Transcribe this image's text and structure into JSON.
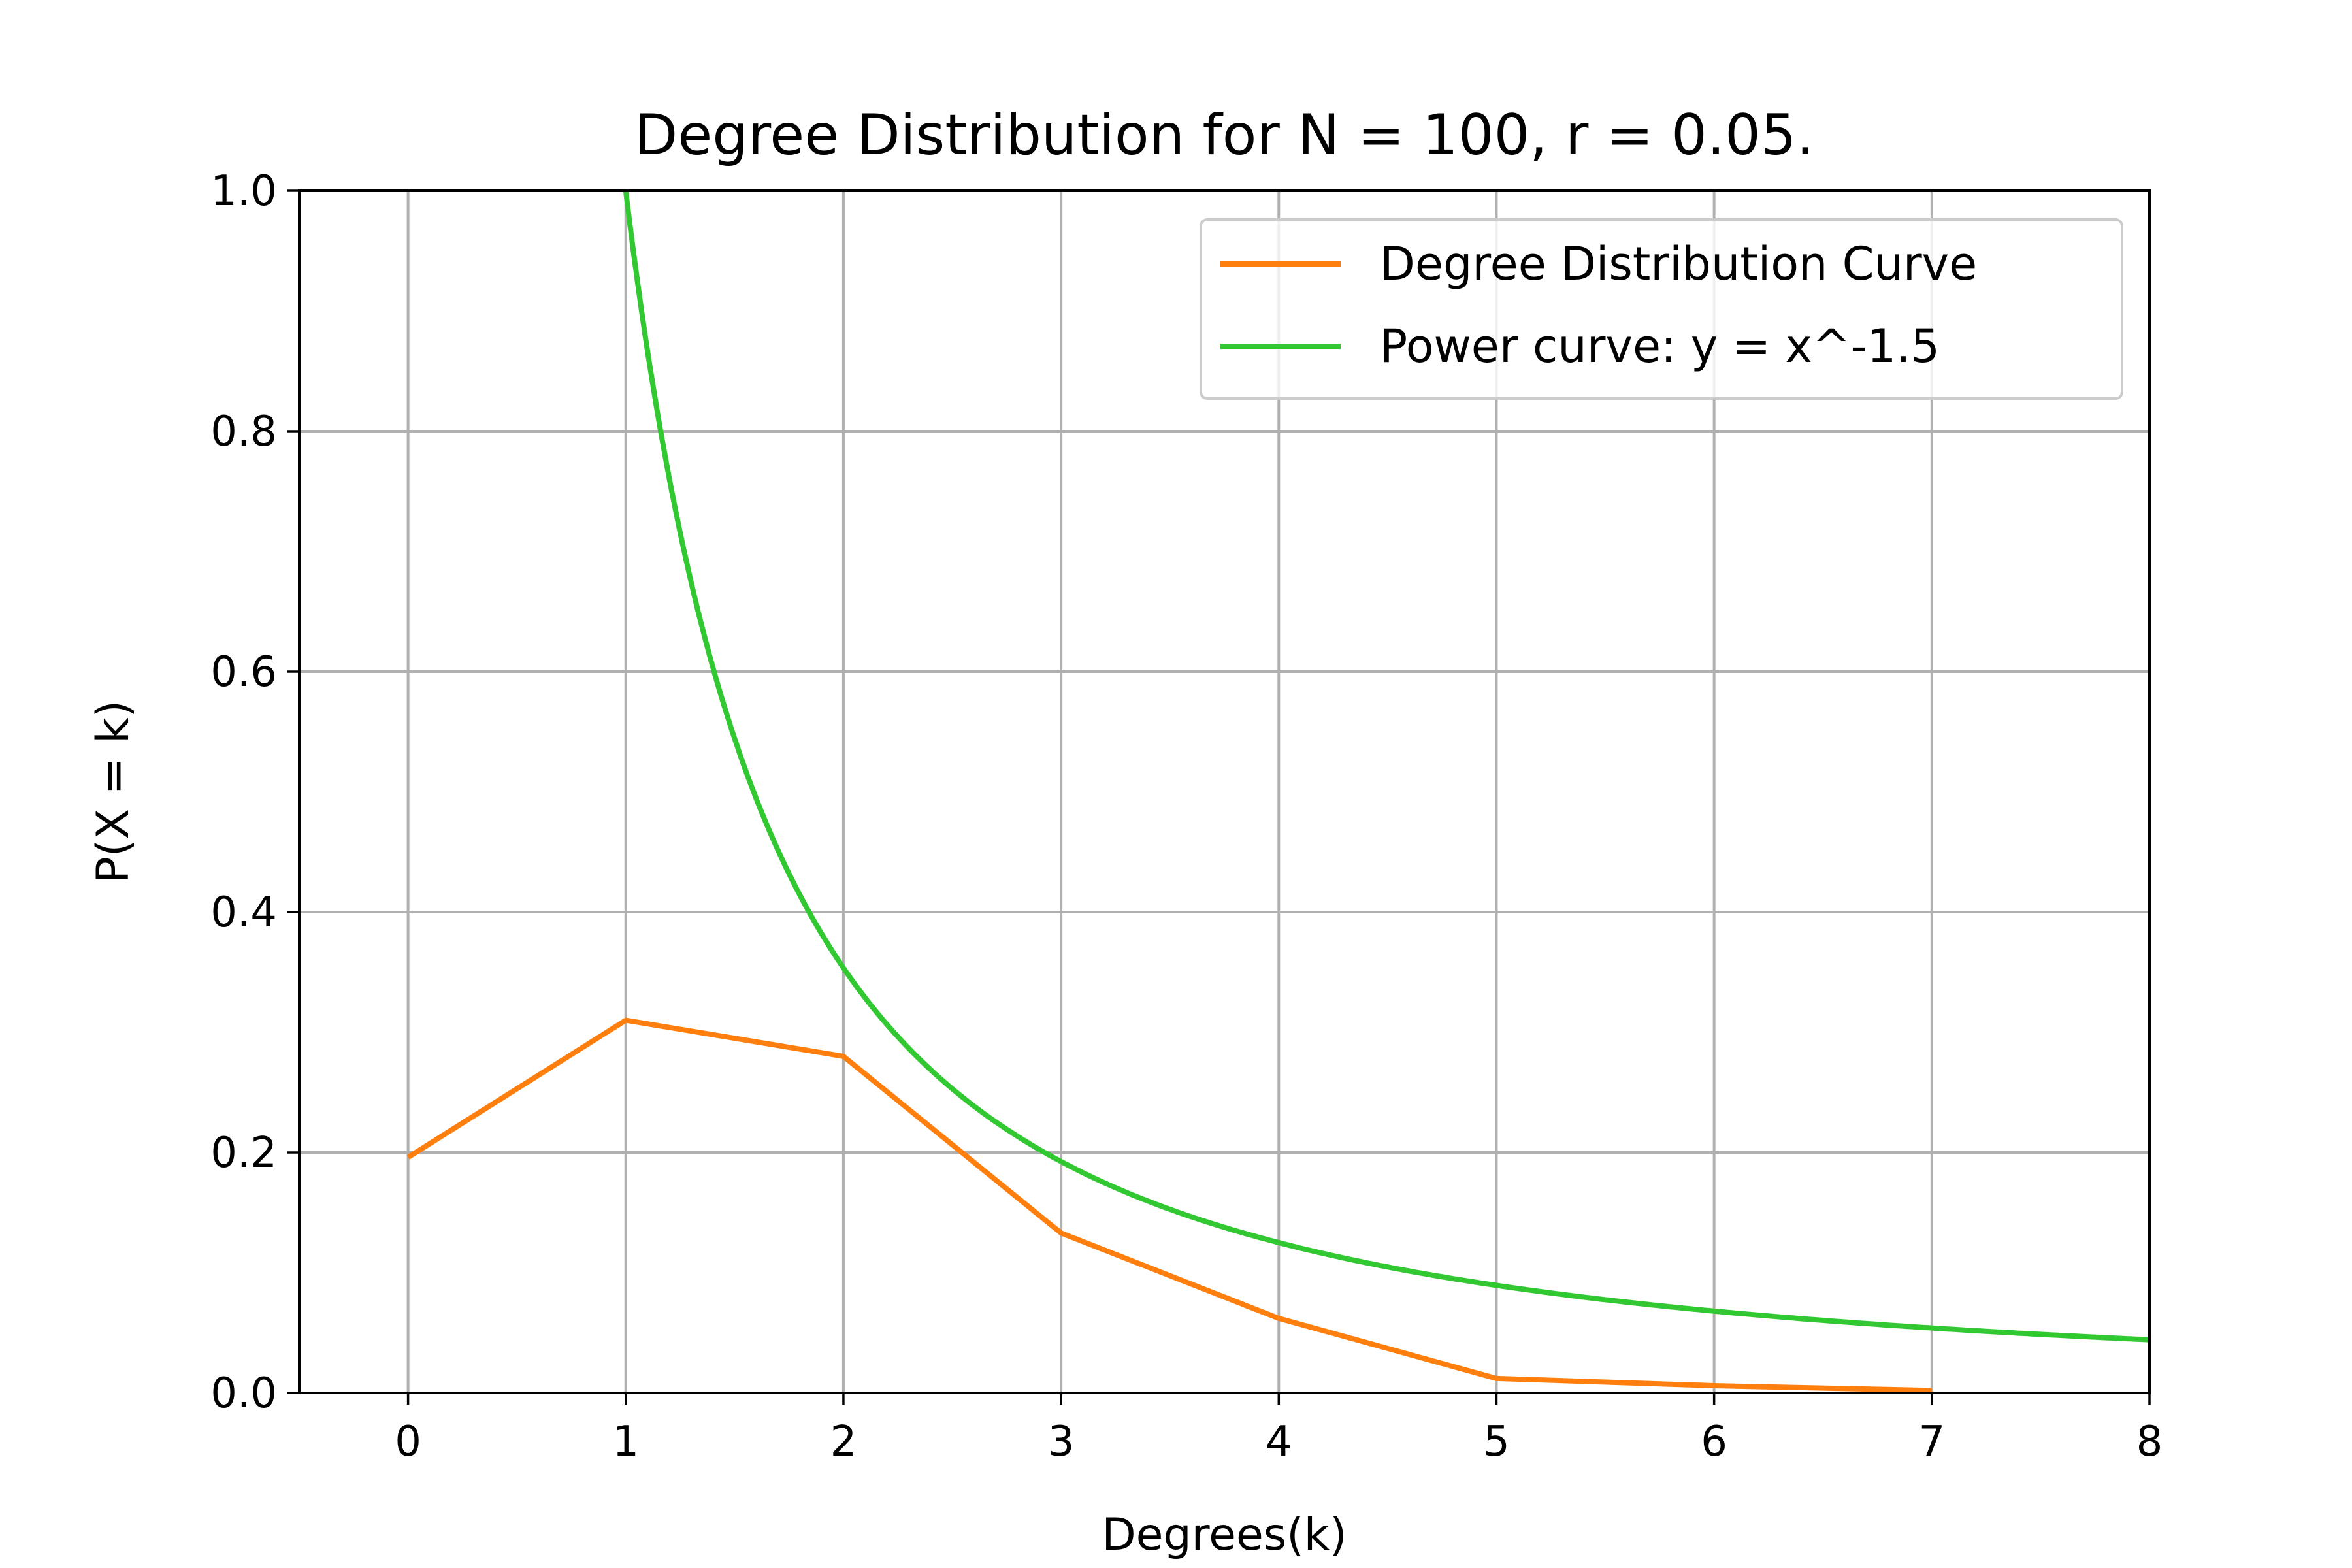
{
  "chart_data": {
    "type": "line",
    "title": "Degree Distribution for N = 100, r = 0.05.",
    "xlabel": "Degrees(k)",
    "ylabel": "P(X = k)",
    "xlim": [
      -0.5,
      8
    ],
    "ylim": [
      0,
      1.0
    ],
    "xticks": [
      0,
      1,
      2,
      3,
      4,
      5,
      6,
      7,
      8
    ],
    "yticks": [
      0.0,
      0.2,
      0.4,
      0.6,
      0.8,
      1.0
    ],
    "xtick_labels": [
      "0",
      "1",
      "2",
      "3",
      "4",
      "5",
      "6",
      "7",
      "8"
    ],
    "ytick_labels": [
      "0.0",
      "0.2",
      "0.4",
      "0.6",
      "0.8",
      "1.0"
    ],
    "grid": true,
    "legend_position": "top-right",
    "series": [
      {
        "name": "Degree Distribution Curve",
        "color": "#ff7f0e",
        "x": [
          0,
          1,
          2,
          3,
          4,
          5,
          6,
          7
        ],
        "y": [
          0.196,
          0.31,
          0.28,
          0.133,
          0.062,
          0.012,
          0.006,
          0.002
        ]
      },
      {
        "name": "Power curve: y = x^-1.5",
        "color": "#32c832",
        "function": "x^-1.5",
        "x_range": [
          1,
          8
        ]
      }
    ]
  }
}
